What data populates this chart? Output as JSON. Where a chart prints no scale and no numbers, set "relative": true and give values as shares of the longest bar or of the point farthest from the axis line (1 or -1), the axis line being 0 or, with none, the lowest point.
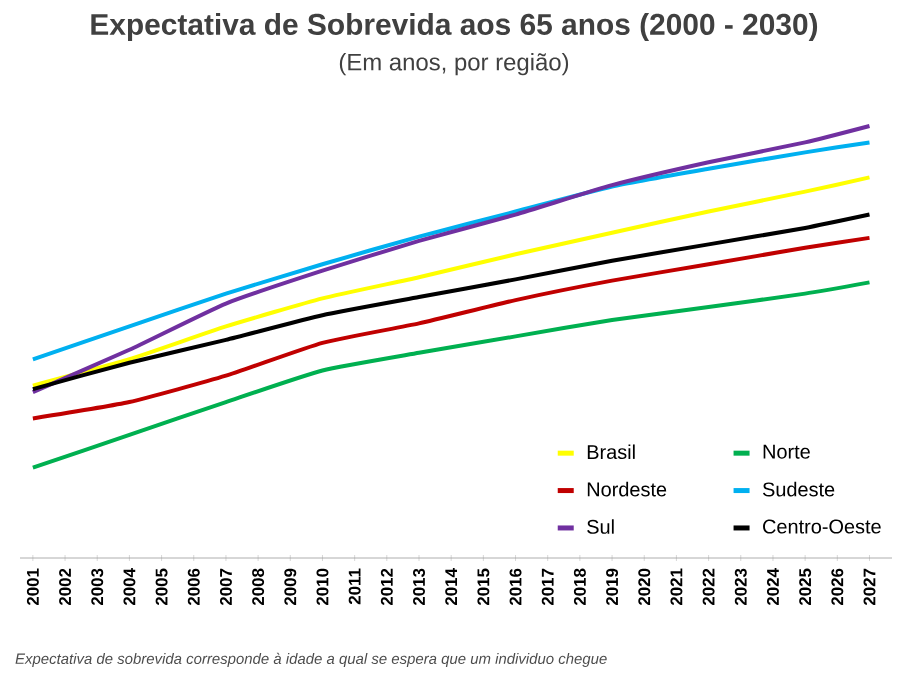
{
  "chart_data": {
    "type": "line",
    "title": "Expectativa de Sobrevida aos 65 anos (2000 - 2030)",
    "subtitle": "(Em anos, por região)",
    "annotations": [
      "Expectativa de sobrevida corresponde à idade a qual se espera que um individuo chegue"
    ],
    "relative": true,
    "legend": "bottom right",
    "x": [
      2001,
      2004,
      2007,
      2010,
      2013,
      2016,
      2019,
      2022,
      2025,
      2027
    ],
    "xlim": [
      2000.6,
      2027.7
    ],
    "xticks": [
      2001,
      2002,
      2003,
      2004,
      2005,
      2006,
      2007,
      2008,
      2009,
      2010,
      2011,
      2012,
      2013,
      2014,
      2015,
      2016,
      2017,
      2018,
      2019,
      2020,
      2021,
      2022,
      2023,
      2024,
      2025,
      2026,
      2027
    ],
    "series": [
      {
        "name": "Brasil",
        "color": "#ffff00",
        "values": [
          0.399,
          0.46,
          0.536,
          0.601,
          0.65,
          0.703,
          0.753,
          0.802,
          0.848,
          0.881
        ]
      },
      {
        "name": "Norte",
        "color": "#00b050",
        "values": [
          0.209,
          0.285,
          0.361,
          0.434,
          0.475,
          0.513,
          0.551,
          0.581,
          0.612,
          0.638
        ]
      },
      {
        "name": "Nordeste",
        "color": "#c00000",
        "values": [
          0.323,
          0.361,
          0.422,
          0.498,
          0.543,
          0.597,
          0.642,
          0.68,
          0.718,
          0.741
        ]
      },
      {
        "name": "Sudeste",
        "color": "#00b0f0",
        "values": [
          0.46,
          0.536,
          0.612,
          0.68,
          0.744,
          0.802,
          0.86,
          0.901,
          0.939,
          0.962
        ]
      },
      {
        "name": "Sul",
        "color": "#7030a0",
        "values": [
          0.384,
          0.482,
          0.589,
          0.665,
          0.734,
          0.795,
          0.863,
          0.916,
          0.962,
          1.0
        ]
      },
      {
        "name": "Centro-Oeste",
        "color": "#000000",
        "values": [
          0.391,
          0.452,
          0.505,
          0.562,
          0.604,
          0.645,
          0.688,
          0.726,
          0.764,
          0.795
        ]
      }
    ]
  }
}
